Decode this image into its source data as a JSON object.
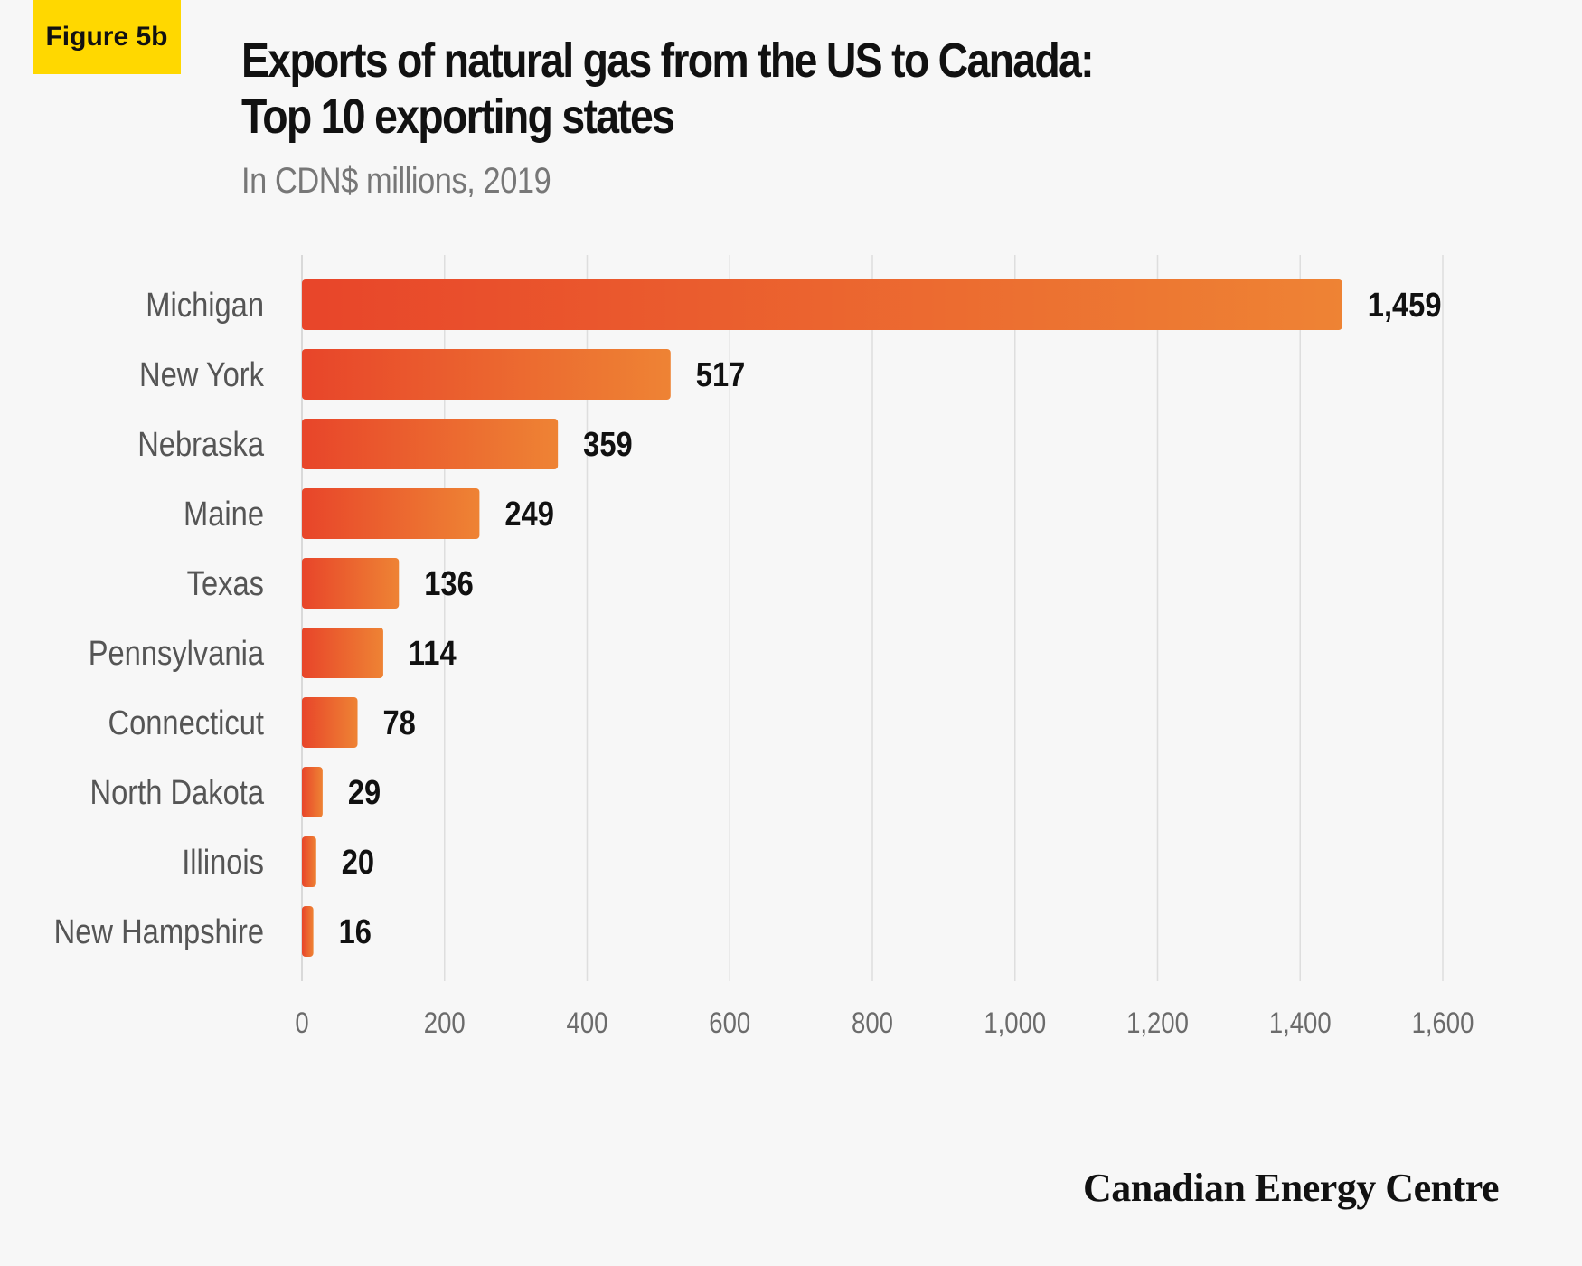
{
  "figure_badge": "Figure 5b",
  "chart_data": {
    "type": "bar",
    "orientation": "horizontal",
    "title_line1": "Exports of natural gas from the US to Canada:",
    "title_line2": "Top 10 exporting states",
    "subtitle": "In CDN$ millions, 2019",
    "categories": [
      "Michigan",
      "New York",
      "Nebraska",
      "Maine",
      "Texas",
      "Pennsylvania",
      "Connecticut",
      "North Dakota",
      "Illinois",
      "New Hampshire"
    ],
    "values": [
      1459,
      517,
      359,
      249,
      136,
      114,
      78,
      29,
      20,
      16
    ],
    "value_labels": [
      "1,459",
      "517",
      "359",
      "249",
      "136",
      "114",
      "78",
      "29",
      "20",
      "16"
    ],
    "xlim": [
      0,
      1600
    ],
    "xticks": [
      0,
      200,
      400,
      600,
      800,
      1000,
      1200,
      1400,
      1600
    ],
    "xtick_labels": [
      "0",
      "200",
      "400",
      "600",
      "800",
      "1,000",
      "1,200",
      "1,400",
      "1,600"
    ],
    "grid": "vertical",
    "bar_color_start": "#e8452a",
    "bar_color_end": "#ee8334"
  },
  "brand": "Canadian Energy Centre"
}
